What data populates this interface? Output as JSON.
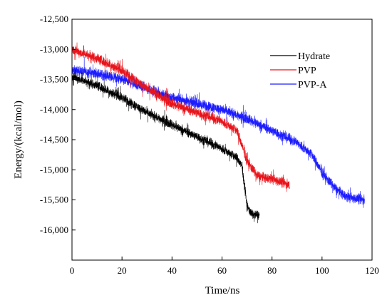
{
  "chart_data": {
    "type": "line",
    "xlabel": "Time/ns",
    "ylabel": "Energy/(kcal/mol)",
    "xlim": [
      0,
      120
    ],
    "ylim": [
      -16500,
      -12500
    ],
    "x_ticks": [
      0,
      20,
      40,
      60,
      80,
      100,
      120
    ],
    "y_ticks": [
      -12500,
      -13000,
      -13500,
      -14000,
      -14500,
      -15000,
      -15500,
      -16000
    ],
    "x_tick_labels": [
      "0",
      "20",
      "40",
      "60",
      "80",
      "100",
      "120"
    ],
    "y_tick_labels": [
      "-12,500",
      "-13,000",
      "-13,500",
      "-14,000",
      "-14,500",
      "-15,000",
      "-15,500",
      "-16,000"
    ],
    "grid": false,
    "legend_position": "top-right",
    "series": [
      {
        "name": "Hydrate",
        "color": "#000000",
        "noise": 110,
        "points": [
          [
            0,
            -13450
          ],
          [
            10,
            -13600
          ],
          [
            20,
            -13800
          ],
          [
            30,
            -14050
          ],
          [
            40,
            -14250
          ],
          [
            50,
            -14450
          ],
          [
            60,
            -14650
          ],
          [
            66,
            -14800
          ],
          [
            68,
            -14950
          ],
          [
            70,
            -15600
          ],
          [
            72,
            -15750
          ],
          [
            75,
            -15750
          ]
        ]
      },
      {
        "name": "PVP",
        "color": "#e8141b",
        "noise": 120,
        "points": [
          [
            0,
            -13000
          ],
          [
            10,
            -13150
          ],
          [
            20,
            -13350
          ],
          [
            30,
            -13650
          ],
          [
            40,
            -13900
          ],
          [
            50,
            -14050
          ],
          [
            60,
            -14200
          ],
          [
            66,
            -14350
          ],
          [
            70,
            -14850
          ],
          [
            74,
            -15100
          ],
          [
            80,
            -15150
          ],
          [
            87,
            -15250
          ]
        ]
      },
      {
        "name": "PVP-A",
        "color": "#1c1cff",
        "noise": 120,
        "points": [
          [
            0,
            -13350
          ],
          [
            10,
            -13400
          ],
          [
            20,
            -13500
          ],
          [
            30,
            -13650
          ],
          [
            40,
            -13800
          ],
          [
            50,
            -13900
          ],
          [
            60,
            -14000
          ],
          [
            70,
            -14150
          ],
          [
            80,
            -14350
          ],
          [
            90,
            -14550
          ],
          [
            96,
            -14750
          ],
          [
            100,
            -15050
          ],
          [
            105,
            -15300
          ],
          [
            110,
            -15450
          ],
          [
            117,
            -15500
          ]
        ]
      }
    ]
  }
}
